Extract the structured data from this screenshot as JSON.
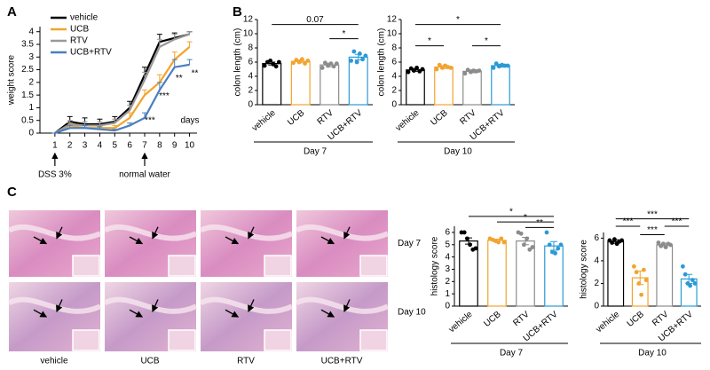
{
  "chart_data": [
    {
      "type": "line",
      "panel": "A",
      "ylabel": "weight score",
      "xlabel": "days",
      "x": [
        1,
        2,
        3,
        4,
        5,
        6,
        7,
        8,
        9,
        10
      ],
      "xlim": [
        0,
        10.5
      ],
      "xticks": [
        1,
        2,
        3,
        4,
        5,
        6,
        7,
        8,
        9,
        10
      ],
      "ylim": [
        0,
        4.2
      ],
      "yticks": [
        0,
        0.5,
        1,
        1.5,
        2,
        2.5,
        3,
        3.5,
        4
      ],
      "legend": "upper left",
      "series": [
        {
          "name": "vehicle",
          "color": "#000000",
          "values": [
            0,
            0.45,
            0.35,
            0.35,
            0.45,
            1.0,
            2.3,
            3.6,
            3.75,
            3.9
          ],
          "errors": [
            0,
            0.2,
            0.25,
            0.2,
            0.2,
            0.25,
            0.3,
            0.3,
            0.2,
            0.1
          ]
        },
        {
          "name": "UCB",
          "color": "#f2a42e",
          "values": [
            0,
            0.3,
            0.2,
            0.2,
            0.2,
            0.6,
            1.5,
            2.0,
            2.9,
            3.4
          ],
          "errors": [
            0,
            0.1,
            0.1,
            0.1,
            0.1,
            0.2,
            0.2,
            0.3,
            0.3,
            0.2
          ]
        },
        {
          "name": "RTV",
          "color": "#999999",
          "values": [
            0,
            0.35,
            0.3,
            0.3,
            0.4,
            0.9,
            2.1,
            3.4,
            3.7,
            3.9
          ],
          "errors": [
            0,
            0.15,
            0.15,
            0.15,
            0.15,
            0.2,
            0.3,
            0.3,
            0.2,
            0.1
          ]
        },
        {
          "name": "UCB+RTV",
          "color": "#4a7fc0",
          "values": [
            0,
            0.2,
            0.2,
            0.15,
            0.1,
            0.3,
            0.6,
            1.7,
            2.6,
            2.7
          ],
          "errors": [
            0,
            0.1,
            0.1,
            0.1,
            0.05,
            0.1,
            0.2,
            0.3,
            0.3,
            0.2
          ]
        }
      ],
      "annotations": [
        {
          "text": "***",
          "x": 7.35,
          "y": 0.5
        },
        {
          "text": "***",
          "x": 8.3,
          "y": 1.45
        },
        {
          "text": "**",
          "x": 9.3,
          "y": 2.15
        },
        {
          "text": "**",
          "x": 10.35,
          "y": 2.35
        }
      ],
      "markers": [
        {
          "x": 1,
          "label": "DSS 3%"
        },
        {
          "x": 7,
          "label": "normal water"
        }
      ]
    },
    {
      "type": "dotbar",
      "panel": "B",
      "ylabel": "colon length (cm)",
      "group_label": "Day 7",
      "categories": [
        "vehicle",
        "UCB",
        "RTV",
        "UCB+RTV"
      ],
      "colors": [
        "#000000",
        "#f2a42e",
        "#8c8c8c",
        "#2a9ad6"
      ],
      "values": [
        5.8,
        6.1,
        5.6,
        6.7
      ],
      "errors": [
        0.2,
        0.2,
        0.25,
        0.4
      ],
      "points": [
        [
          5.5,
          6.0,
          6.2,
          5.7,
          5.4,
          6.0
        ],
        [
          5.9,
          6.3,
          6.0,
          6.4,
          5.8,
          6.2
        ],
        [
          5.2,
          5.9,
          5.5,
          5.8,
          5.4,
          5.8
        ],
        [
          6.2,
          7.5,
          6.0,
          7.2,
          6.4,
          6.9
        ]
      ],
      "ylim": [
        0,
        12
      ],
      "yticks": [
        0,
        2,
        4,
        6,
        8,
        10,
        12
      ],
      "brackets": [
        {
          "between": [
            0,
            3
          ],
          "y": 11.3,
          "label": "0.07"
        },
        {
          "between": [
            2,
            3
          ],
          "y": 9.3,
          "label": "*"
        }
      ]
    },
    {
      "type": "dotbar",
      "ylabel": "colon length (cm)",
      "group_label": "Day 10",
      "categories": [
        "vehicle",
        "UCB",
        "RTV",
        "UCB+RTV"
      ],
      "colors": [
        "#000000",
        "#f2a42e",
        "#8c8c8c",
        "#2a9ad6"
      ],
      "values": [
        4.9,
        5.3,
        4.7,
        5.5
      ],
      "errors": [
        0.2,
        0.2,
        0.2,
        0.2
      ],
      "points": [
        [
          4.6,
          5.1,
          4.8,
          5.2,
          4.7,
          5.0
        ],
        [
          5.0,
          5.6,
          5.2,
          5.5,
          5.3,
          5.2
        ],
        [
          4.4,
          4.9,
          4.6,
          4.8,
          4.7,
          4.8
        ],
        [
          5.2,
          5.8,
          5.4,
          5.6,
          5.5,
          5.5
        ]
      ],
      "ylim": [
        0,
        12
      ],
      "yticks": [
        0,
        2,
        4,
        6,
        8,
        10,
        12
      ],
      "brackets": [
        {
          "between": [
            0,
            3
          ],
          "y": 11.3,
          "label": "*"
        },
        {
          "between": [
            0,
            1
          ],
          "y": 8.3,
          "label": "*"
        },
        {
          "between": [
            2,
            3
          ],
          "y": 8.3,
          "label": "*"
        }
      ]
    },
    {
      "type": "dotbar",
      "ylabel": "histology score",
      "group_label": "Day 7",
      "categories": [
        "vehicle",
        "UCB",
        "RTV",
        "UCB+RTV"
      ],
      "colors": [
        "#000000",
        "#f2a42e",
        "#8c8c8c",
        "#2a9ad6"
      ],
      "values": [
        5.3,
        5.35,
        5.3,
        4.9
      ],
      "errors": [
        0.25,
        0.1,
        0.3,
        0.35
      ],
      "points": [
        [
          6.0,
          6.0,
          5.5,
          5.0,
          4.6,
          4.7
        ],
        [
          5.5,
          5.4,
          5.3,
          5.2,
          5.5,
          5.2
        ],
        [
          6.0,
          5.9,
          5.0,
          5.5,
          4.6,
          4.8
        ],
        [
          6.0,
          5.0,
          4.4,
          4.3,
          4.7,
          5.0
        ]
      ],
      "ylim": [
        0,
        6.5
      ],
      "yticks": [
        0,
        1,
        2,
        3,
        4,
        5,
        6
      ],
      "brackets": [
        {
          "between": [
            0,
            3
          ],
          "y": 7.3,
          "label": "*"
        },
        {
          "between": [
            1,
            3
          ],
          "y": 6.85,
          "label": "*"
        },
        {
          "between": [
            2,
            3
          ],
          "y": 6.4,
          "label": "**"
        }
      ]
    },
    {
      "type": "dotbar",
      "ylabel": "histology score",
      "group_label": "Day 10",
      "categories": [
        "vehicle",
        "UCB",
        "RTV",
        "UCB+RTV"
      ],
      "colors": [
        "#000000",
        "#f2a42e",
        "#8c8c8c",
        "#2a9ad6"
      ],
      "values": [
        5.7,
        2.5,
        5.4,
        2.4
      ],
      "errors": [
        0.15,
        0.6,
        0.15,
        0.4
      ],
      "points": [
        [
          5.8,
          5.6,
          5.9,
          5.5,
          5.7,
          5.8
        ],
        [
          3.5,
          3.0,
          2.0,
          1.0,
          3.2,
          2.3
        ],
        [
          5.6,
          5.3,
          5.5,
          5.2,
          5.5,
          5.4
        ],
        [
          3.5,
          2.8,
          2.0,
          1.8,
          2.3,
          2.0
        ]
      ],
      "ylim": [
        0,
        6.5
      ],
      "yticks": [
        0,
        2,
        4,
        6
      ],
      "brackets": [
        {
          "between": [
            0,
            3
          ],
          "y": 7.7,
          "label": "***"
        },
        {
          "between": [
            0,
            1
          ],
          "y": 7.05,
          "label": "***"
        },
        {
          "between": [
            2,
            3
          ],
          "y": 7.05,
          "label": "***"
        },
        {
          "between": [
            1,
            2
          ],
          "y": 6.3,
          "label": "***"
        }
      ]
    }
  ],
  "images": {
    "panel": "C",
    "columns": [
      "vehicle",
      "UCB",
      "RTV",
      "UCB+RTV"
    ],
    "rows": [
      "Day 7",
      "Day 10"
    ]
  }
}
